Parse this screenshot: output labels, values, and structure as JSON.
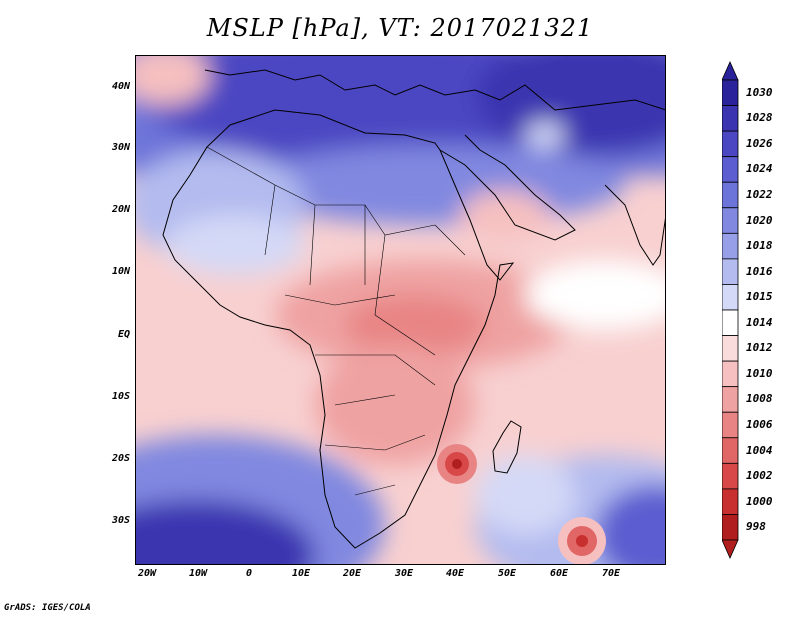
{
  "title": "MSLP [hPa], VT: 2017021321",
  "credit": "GrADS: IGES/COLA",
  "axes": {
    "y_ticks": [
      "40N",
      "30N",
      "20N",
      "10N",
      "EQ",
      "10S",
      "20S",
      "30S"
    ],
    "x_ticks": [
      "20W",
      "10W",
      "0",
      "10E",
      "20E",
      "30E",
      "40E",
      "50E",
      "60E",
      "70E"
    ]
  },
  "colorbar": {
    "levels": [
      "1030",
      "1028",
      "1026",
      "1024",
      "1022",
      "1020",
      "1018",
      "1016",
      "1015",
      "1014",
      "1012",
      "1010",
      "1008",
      "1006",
      "1004",
      "1002",
      "1000",
      "998"
    ],
    "colors": [
      "#2a229a",
      "#3a34b0",
      "#4b47c2",
      "#5c5dd0",
      "#6d74d9",
      "#8088e0",
      "#969fe7",
      "#b3bbef",
      "#d4d9f7",
      "#ffffff",
      "#fbdcdc",
      "#f6c0c0",
      "#efa2a2",
      "#e88484",
      "#e16666",
      "#d84848",
      "#c83030",
      "#b01e1e"
    ]
  }
}
